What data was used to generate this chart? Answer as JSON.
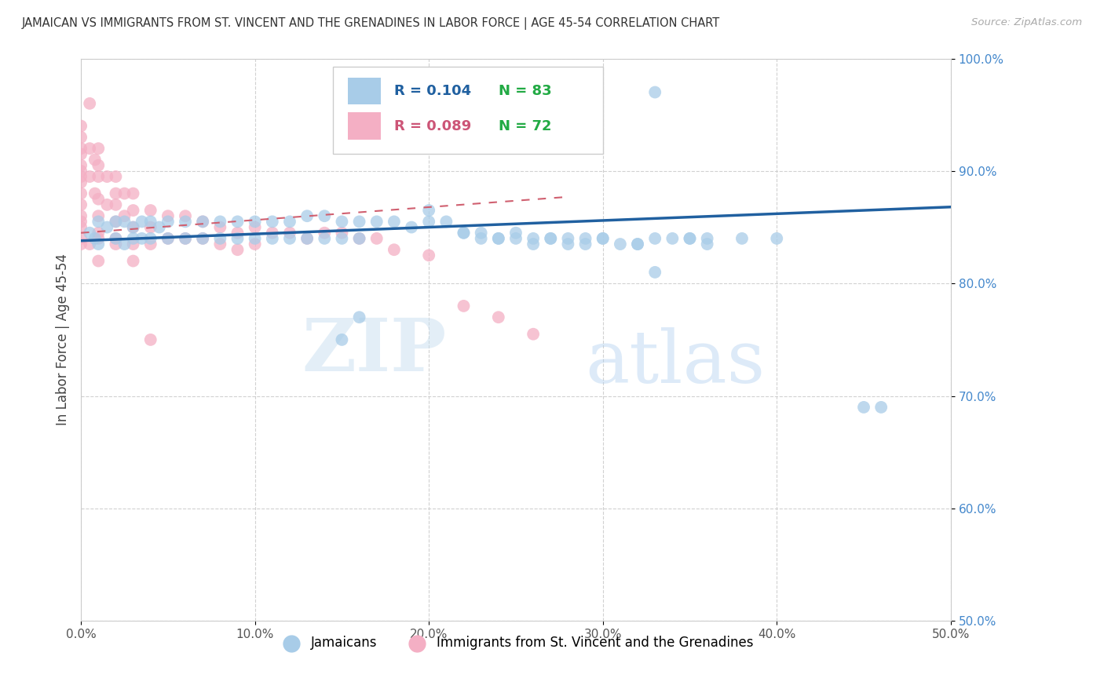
{
  "title": "JAMAICAN VS IMMIGRANTS FROM ST. VINCENT AND THE GRENADINES IN LABOR FORCE | AGE 45-54 CORRELATION CHART",
  "source": "Source: ZipAtlas.com",
  "ylabel": "In Labor Force | Age 45-54",
  "xlim": [
    0.0,
    0.5
  ],
  "ylim": [
    0.5,
    1.0
  ],
  "xticks": [
    0.0,
    0.1,
    0.2,
    0.3,
    0.4,
    0.5
  ],
  "yticks": [
    0.5,
    0.6,
    0.7,
    0.8,
    0.9,
    1.0
  ],
  "xtick_labels": [
    "0.0%",
    "10.0%",
    "20.0%",
    "30.0%",
    "40.0%",
    "50.0%"
  ],
  "ytick_labels": [
    "50.0%",
    "60.0%",
    "70.0%",
    "80.0%",
    "90.0%",
    "100.0%"
  ],
  "legend_label1": "Jamaicans",
  "legend_label2": "Immigrants from St. Vincent and the Grenadines",
  "R1": 0.104,
  "N1": 83,
  "R2": 0.089,
  "N2": 72,
  "color1": "#a8cce8",
  "color2": "#f4afc4",
  "trendline1_color": "#2060a0",
  "trendline2_color": "#d06070",
  "watermark_zip": "ZIP",
  "watermark_atlas": "atlas",
  "background_color": "#ffffff",
  "grid_color": "#cccccc",
  "ytick_color": "#4488cc",
  "xtick_color": "#555555",
  "blue_x": [
    0.005,
    0.008,
    0.01,
    0.01,
    0.015,
    0.02,
    0.02,
    0.025,
    0.025,
    0.03,
    0.03,
    0.035,
    0.035,
    0.04,
    0.04,
    0.045,
    0.05,
    0.05,
    0.06,
    0.06,
    0.07,
    0.07,
    0.08,
    0.08,
    0.09,
    0.09,
    0.1,
    0.1,
    0.11,
    0.11,
    0.12,
    0.12,
    0.13,
    0.13,
    0.14,
    0.14,
    0.15,
    0.15,
    0.16,
    0.16,
    0.17,
    0.18,
    0.19,
    0.2,
    0.21,
    0.22,
    0.23,
    0.24,
    0.25,
    0.26,
    0.27,
    0.28,
    0.29,
    0.3,
    0.32,
    0.33,
    0.35,
    0.36,
    0.38,
    0.4,
    0.22,
    0.23,
    0.24,
    0.25,
    0.26,
    0.27,
    0.28,
    0.29,
    0.3,
    0.31,
    0.32,
    0.33,
    0.34,
    0.35,
    0.36,
    0.45,
    0.46,
    0.22,
    0.18,
    0.2,
    0.15,
    0.16,
    0.33
  ],
  "blue_y": [
    0.845,
    0.84,
    0.855,
    0.835,
    0.85,
    0.855,
    0.84,
    0.855,
    0.835,
    0.85,
    0.84,
    0.855,
    0.84,
    0.855,
    0.84,
    0.85,
    0.855,
    0.84,
    0.855,
    0.84,
    0.855,
    0.84,
    0.855,
    0.84,
    0.855,
    0.84,
    0.855,
    0.84,
    0.855,
    0.84,
    0.855,
    0.84,
    0.86,
    0.84,
    0.86,
    0.84,
    0.855,
    0.84,
    0.855,
    0.84,
    0.855,
    0.855,
    0.85,
    0.855,
    0.855,
    0.845,
    0.84,
    0.84,
    0.84,
    0.835,
    0.84,
    0.84,
    0.835,
    0.84,
    0.835,
    0.81,
    0.84,
    0.84,
    0.84,
    0.84,
    0.845,
    0.845,
    0.84,
    0.845,
    0.84,
    0.84,
    0.835,
    0.84,
    0.84,
    0.835,
    0.835,
    0.84,
    0.84,
    0.84,
    0.835,
    0.69,
    0.69,
    0.935,
    0.96,
    0.865,
    0.75,
    0.77,
    0.97
  ],
  "pink_x": [
    0.0,
    0.0,
    0.0,
    0.0,
    0.0,
    0.0,
    0.0,
    0.0,
    0.0,
    0.0,
    0.0,
    0.0,
    0.0,
    0.0,
    0.0,
    0.005,
    0.005,
    0.008,
    0.008,
    0.01,
    0.01,
    0.01,
    0.01,
    0.01,
    0.01,
    0.015,
    0.015,
    0.02,
    0.02,
    0.02,
    0.02,
    0.02,
    0.025,
    0.025,
    0.03,
    0.03,
    0.03,
    0.03,
    0.04,
    0.04,
    0.04,
    0.05,
    0.05,
    0.06,
    0.06,
    0.07,
    0.07,
    0.08,
    0.08,
    0.09,
    0.09,
    0.1,
    0.1,
    0.11,
    0.12,
    0.13,
    0.14,
    0.15,
    0.16,
    0.17,
    0.18,
    0.2,
    0.22,
    0.24,
    0.26,
    0.005,
    0.005,
    0.01,
    0.01,
    0.02,
    0.03,
    0.04
  ],
  "pink_y": [
    0.94,
    0.93,
    0.92,
    0.915,
    0.905,
    0.9,
    0.895,
    0.89,
    0.88,
    0.87,
    0.86,
    0.855,
    0.85,
    0.84,
    0.835,
    0.92,
    0.895,
    0.91,
    0.88,
    0.92,
    0.905,
    0.895,
    0.875,
    0.86,
    0.845,
    0.895,
    0.87,
    0.895,
    0.88,
    0.87,
    0.855,
    0.84,
    0.88,
    0.86,
    0.88,
    0.865,
    0.85,
    0.835,
    0.865,
    0.85,
    0.835,
    0.86,
    0.84,
    0.86,
    0.84,
    0.855,
    0.84,
    0.85,
    0.835,
    0.845,
    0.83,
    0.85,
    0.835,
    0.845,
    0.845,
    0.84,
    0.845,
    0.845,
    0.84,
    0.84,
    0.83,
    0.825,
    0.78,
    0.77,
    0.755,
    0.96,
    0.835,
    0.84,
    0.82,
    0.835,
    0.82,
    0.75
  ],
  "trendline1_x0": 0.0,
  "trendline1_y0": 0.838,
  "trendline1_x1": 0.5,
  "trendline1_y1": 0.868,
  "trendline2_x0": 0.0,
  "trendline2_y0": 0.845,
  "trendline2_x1": 0.28,
  "trendline2_y1": 0.877
}
